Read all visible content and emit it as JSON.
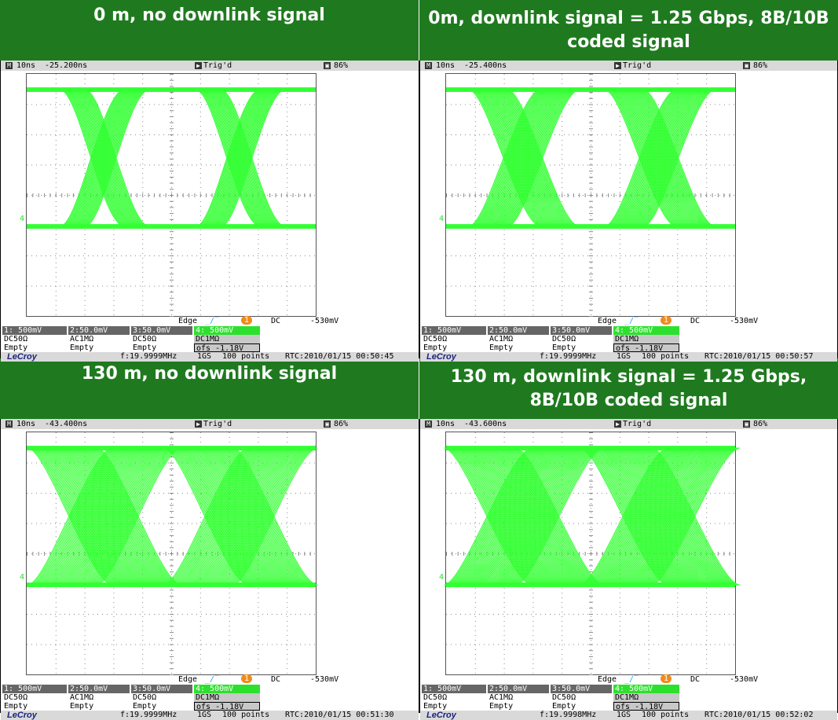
{
  "panels": [
    {
      "title": "0 m, no downlink signal",
      "timebase": "10ns",
      "delay": "-25.200ns",
      "trig": "Trig'd",
      "battery": "86%",
      "trig_mode": "Edge",
      "trig_source": "1",
      "coupling": "DC",
      "level": "-530mV",
      "ch": [
        {
          "scale": "1: 500mV",
          "coup": "DC50Ω",
          "state": "Empty"
        },
        {
          "scale": "2:50.0mV",
          "coup": "AC1MΩ",
          "state": "Empty"
        },
        {
          "scale": "3:50.0mV",
          "coup": "DC50Ω",
          "state": "Empty"
        },
        {
          "scale": "4: 500mV",
          "coup": "DC1MΩ",
          "state": "ofs   -1.18V"
        }
      ],
      "brand": "LeCroy",
      "freq": "f:19.9999MHz",
      "rate": "1GS",
      "points": "100 points",
      "rtc": "RTC:2010/01/15 00:50:45",
      "ch_marker": "4",
      "eye": {
        "jitter": 0.35,
        "spread": 0.2
      }
    },
    {
      "title": "0m, downlink signal = 1.25 Gbps, 8B/10B coded signal",
      "timebase": "10ns",
      "delay": "-25.400ns",
      "trig": "Trig'd",
      "battery": "86%",
      "trig_mode": "Edge",
      "trig_source": "1",
      "coupling": "DC",
      "level": "-530mV",
      "ch": [
        {
          "scale": "1: 500mV",
          "coup": "DC50Ω",
          "state": "Empty"
        },
        {
          "scale": "2:50.0mV",
          "coup": "AC1MΩ",
          "state": "Empty"
        },
        {
          "scale": "3:50.0mV",
          "coup": "DC50Ω",
          "state": "Empty"
        },
        {
          "scale": "4: 500mV",
          "coup": "DC1MΩ",
          "state": "ofs   -1.18V"
        }
      ],
      "brand": "LeCroy",
      "freq": "f:19.9999MHz",
      "rate": "1GS",
      "points": "100 points",
      "rtc": "RTC:2010/01/15 00:50:57",
      "ch_marker": "4",
      "eye": {
        "jitter": 0.6,
        "spread": 0.45
      }
    },
    {
      "title": "130 m, no downlink signal",
      "timebase": "10ns",
      "delay": "-43.400ns",
      "trig": "Trig'd",
      "battery": "86%",
      "trig_mode": "Edge",
      "trig_source": "1",
      "coupling": "DC",
      "level": "-530mV",
      "ch": [
        {
          "scale": "1: 500mV",
          "coup": "DC50Ω",
          "state": "Empty"
        },
        {
          "scale": "2:50.0mV",
          "coup": "AC1MΩ",
          "state": "Empty"
        },
        {
          "scale": "3:50.0mV",
          "coup": "DC50Ω",
          "state": "Empty"
        },
        {
          "scale": "4: 500mV",
          "coup": "DC1MΩ",
          "state": "ofs   -1.18V"
        }
      ],
      "brand": "LeCroy",
      "freq": "f:19.9999MHz",
      "rate": "1GS",
      "points": "100 points",
      "rtc": "RTC:2010/01/15 00:51:30",
      "ch_marker": "4",
      "eye": {
        "jitter": 1.0,
        "spread": 1.0
      }
    },
    {
      "title": "130 m, downlink signal  = 1.25 Gbps, 8B/10B coded signal",
      "timebase": "10ns",
      "delay": "-43.600ns",
      "trig": "Trig'd",
      "battery": "86%",
      "trig_mode": "Edge",
      "trig_source": "1",
      "coupling": "DC",
      "level": "-530mV",
      "ch": [
        {
          "scale": "1: 500mV",
          "coup": "DC50Ω",
          "state": "Empty"
        },
        {
          "scale": "2:50.0mV",
          "coup": "AC1MΩ",
          "state": "Empty"
        },
        {
          "scale": "3:50.0mV",
          "coup": "DC50Ω",
          "state": "Empty"
        },
        {
          "scale": "4: 500mV",
          "coup": "DC1MΩ",
          "state": "ofs   -1.18V"
        }
      ],
      "brand": "LeCroy",
      "freq": "f:19.9998MHz",
      "rate": "1GS",
      "points": "100 points",
      "rtc": "RTC:2010/01/15 00:52:02",
      "ch_marker": "4",
      "eye": {
        "jitter": 1.1,
        "spread": 1.05
      }
    }
  ],
  "colors": {
    "header_bg": "#1f7a1f",
    "trace": "#33ff33",
    "grid": "#888888"
  }
}
